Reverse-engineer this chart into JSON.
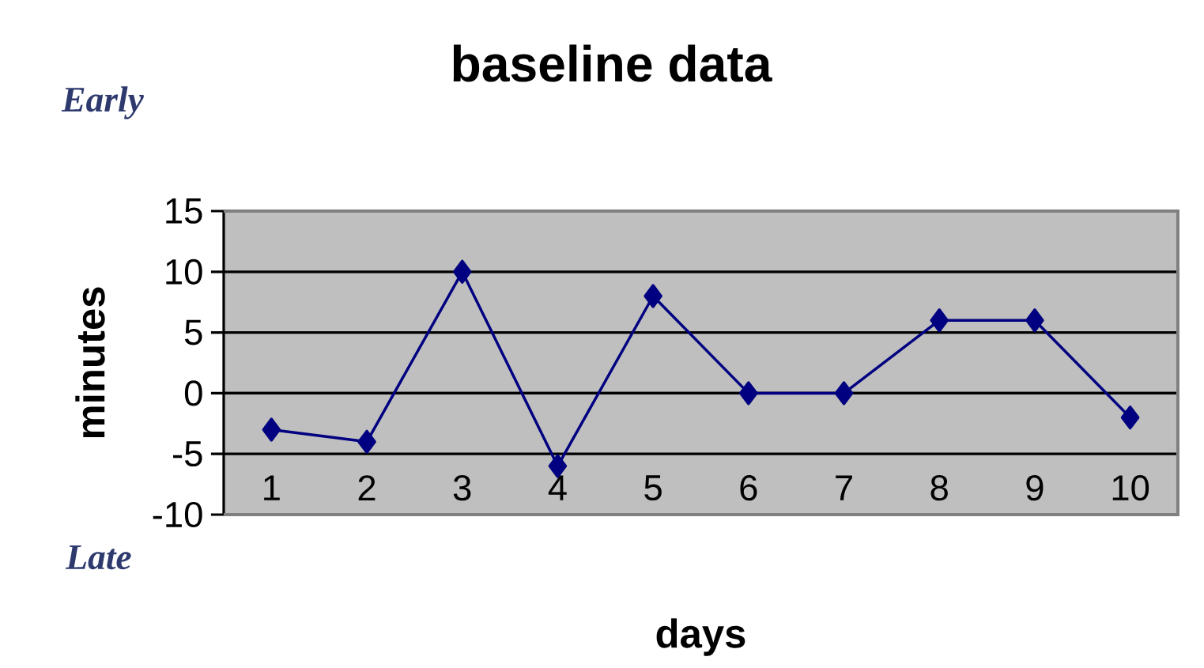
{
  "chart_data": {
    "type": "line",
    "title": "baseline data",
    "xlabel": "days",
    "ylabel": "minutes",
    "categories": [
      "1",
      "2",
      "3",
      "4",
      "5",
      "6",
      "7",
      "8",
      "9",
      "10"
    ],
    "series": [
      {
        "color": "#000080",
        "values": [
          -3,
          -4,
          10,
          -6,
          8,
          0,
          0,
          6,
          6,
          -2
        ]
      }
    ],
    "ylim": [
      -10,
      15
    ],
    "yticks": [
      -10,
      -5,
      0,
      5,
      10,
      15
    ],
    "grid": "y",
    "marker": "diamond",
    "line_style": "solid",
    "annotations": [
      "Early",
      "Late"
    ]
  }
}
